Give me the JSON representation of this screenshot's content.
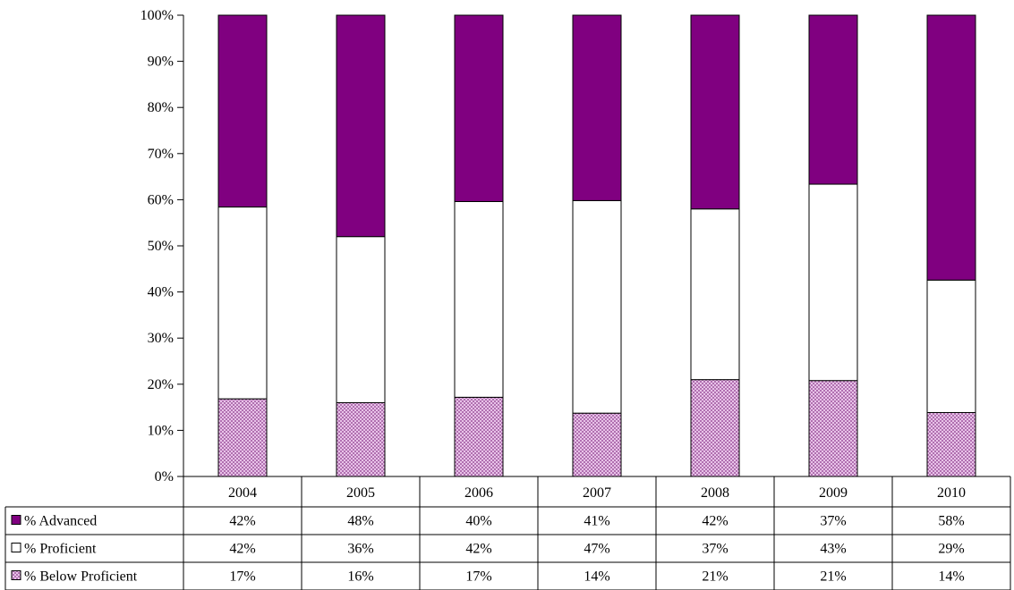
{
  "chart_data": {
    "type": "bar",
    "stacked": true,
    "percent_stacked": true,
    "categories": [
      "2004",
      "2005",
      "2006",
      "2007",
      "2008",
      "2009",
      "2010"
    ],
    "series": [
      {
        "name": "% Below Proficient",
        "values": [
          17,
          16,
          17,
          14,
          21,
          21,
          14
        ],
        "labels": [
          "17%",
          "16%",
          "17%",
          "14%",
          "21%",
          "21%",
          "14%"
        ],
        "color": "#d9a3d9",
        "pattern": "dotted"
      },
      {
        "name": "% Proficient",
        "values": [
          42,
          36,
          42,
          47,
          37,
          43,
          29
        ],
        "labels": [
          "42%",
          "36%",
          "42%",
          "47%",
          "37%",
          "43%",
          "29%"
        ],
        "color": "#ffffff"
      },
      {
        "name": "% Advanced",
        "values": [
          42,
          48,
          40,
          41,
          42,
          37,
          58
        ],
        "labels": [
          "42%",
          "48%",
          "40%",
          "41%",
          "42%",
          "37%",
          "58%"
        ],
        "color": "#800080"
      }
    ],
    "table_row_order": [
      2,
      1,
      0
    ],
    "y_ticks": [
      "0%",
      "10%",
      "20%",
      "30%",
      "40%",
      "50%",
      "60%",
      "70%",
      "80%",
      "90%",
      "100%"
    ],
    "ylim": [
      0,
      100
    ],
    "grid": false,
    "legend": "data-table-left"
  }
}
